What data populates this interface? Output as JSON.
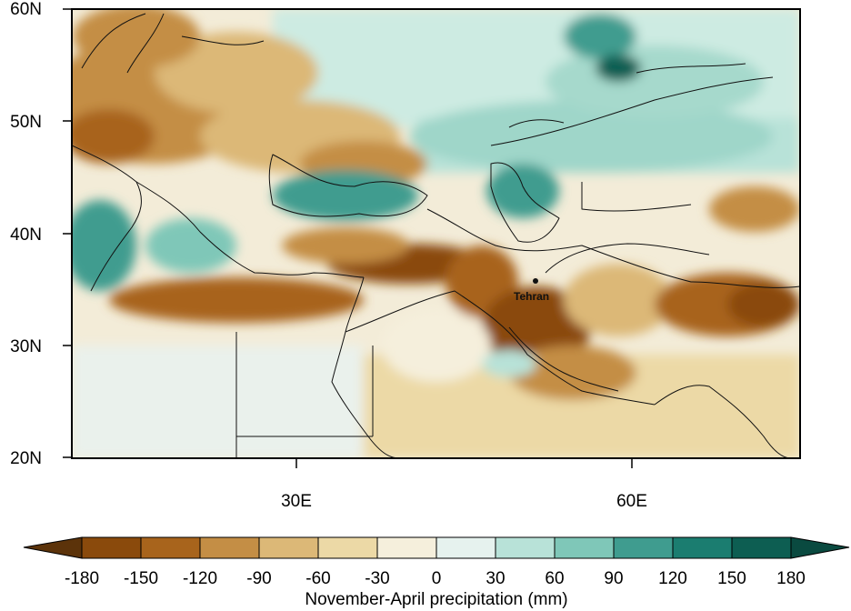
{
  "map": {
    "lat_labels": [
      "60N",
      "50N",
      "40N",
      "30N",
      "20N"
    ],
    "lon_labels": [
      "30E",
      "60E"
    ],
    "place_label": "Tehran",
    "place_marker": "city-dot"
  },
  "colorbar": {
    "ticks": [
      "-180",
      "-150",
      "-120",
      "-90",
      "-60",
      "-30",
      "0",
      "30",
      "60",
      "90",
      "120",
      "150",
      "180"
    ],
    "colors": [
      "#8a4a0c",
      "#a8641c",
      "#c48e45",
      "#dcb877",
      "#ecd9a6",
      "#f5efdc",
      "#e6f2ee",
      "#b8e2d8",
      "#7fc7b8",
      "#3f9c8f",
      "#1b7d70",
      "#0d5e52",
      "#5c330a",
      "#0a4a40"
    ],
    "label": "November-April precipitation (mm)"
  }
}
